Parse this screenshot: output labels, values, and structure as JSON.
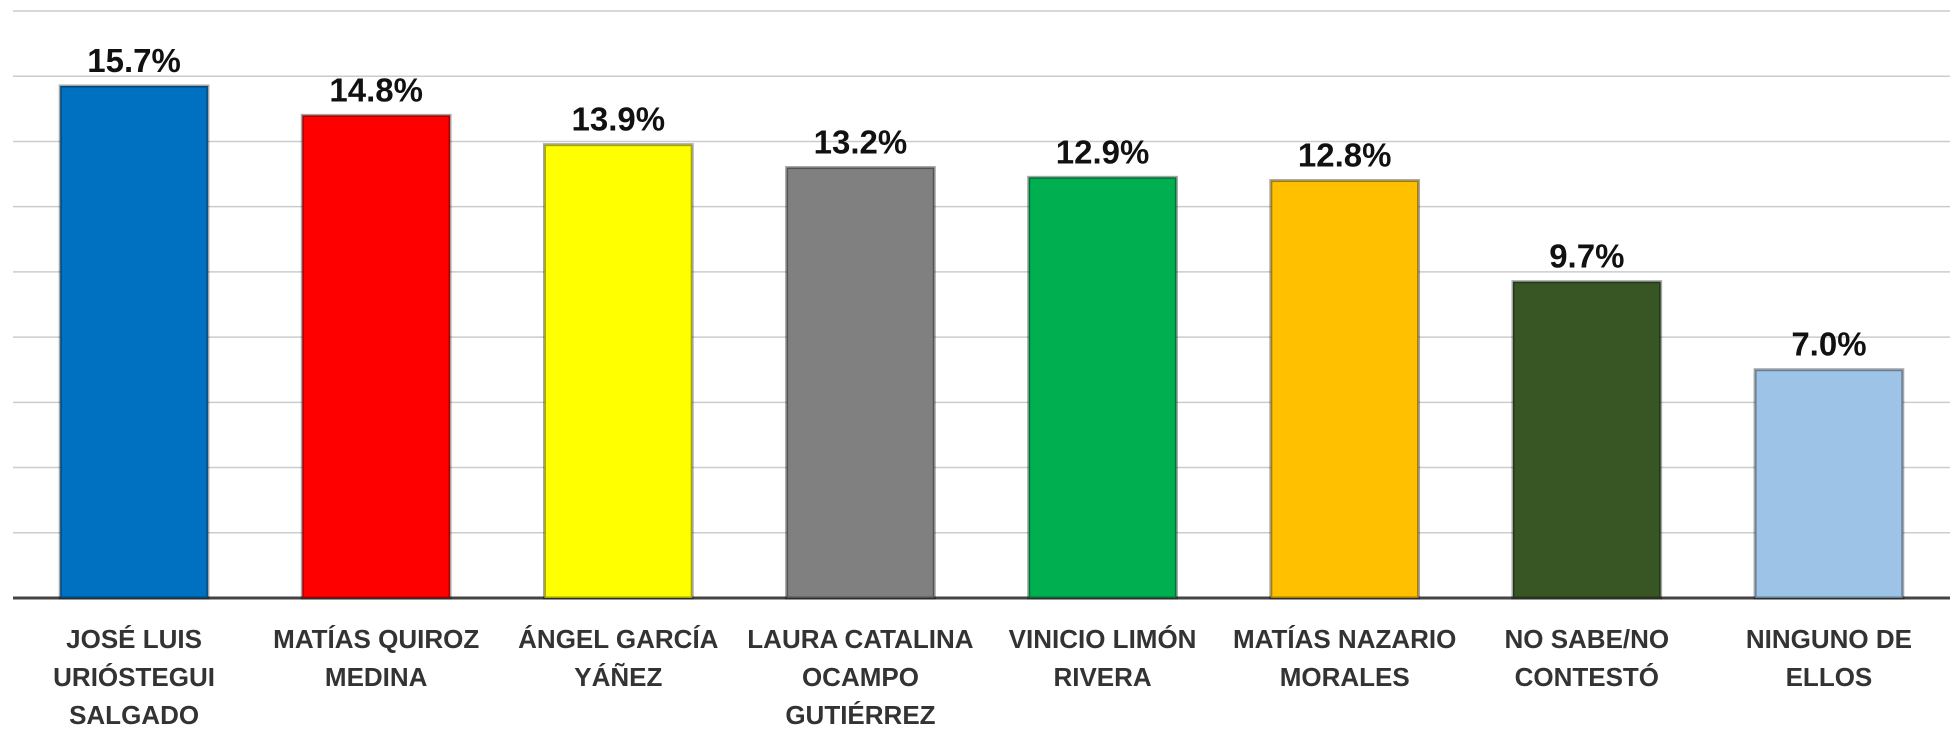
{
  "chart_data": {
    "type": "bar",
    "categories": [
      "JOSÉ LUIS\nURIÓSTEGUI\nSALGADO",
      "MATÍAS QUIROZ\nMEDINA",
      "ÁNGEL GARCÍA\nYÁÑEZ",
      "LAURA CATALINA\nOCAMPO\nGUTIÉRREZ",
      "VINICIO LIMÓN\nRIVERA",
      "MATÍAS NAZARIO\nMORALES",
      "NO SABE/NO\nCONTESTÓ",
      "NINGUNO DE\nELLOS"
    ],
    "values": [
      15.7,
      14.8,
      13.9,
      13.2,
      12.9,
      12.8,
      9.7,
      7.0
    ],
    "value_labels": [
      "15.7%",
      "14.8%",
      "13.9%",
      "13.2%",
      "12.9%",
      "12.8%",
      "9.7%",
      "7.0%"
    ],
    "colors": [
      "#0070c0",
      "#ff0000",
      "#ffff00",
      "#808080",
      "#00b050",
      "#ffc000",
      "#375623",
      "#9dc3e6"
    ],
    "ylim": [
      0,
      18
    ],
    "yticks": [
      0,
      2,
      4,
      6,
      8,
      10,
      12,
      14,
      16,
      18
    ],
    "grid": true
  }
}
